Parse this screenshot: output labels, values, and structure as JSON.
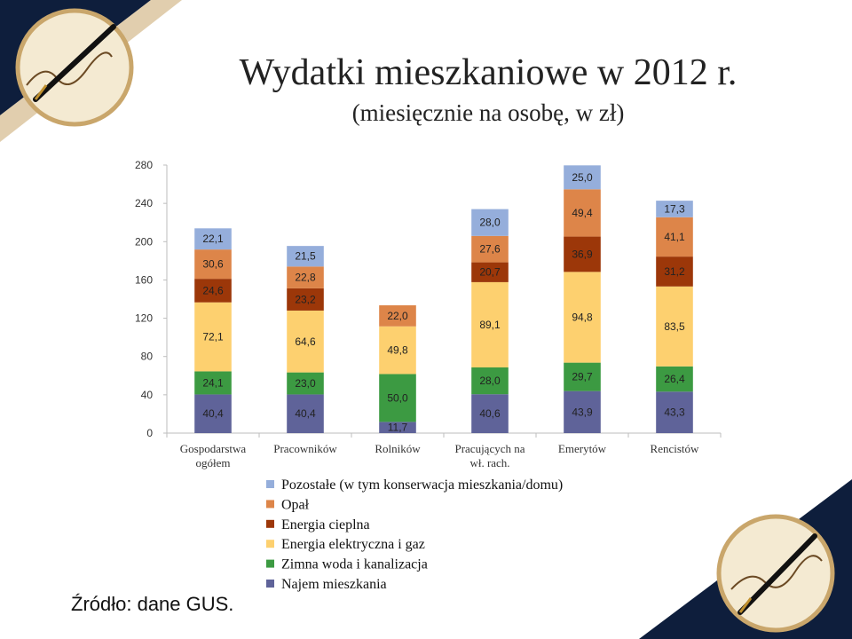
{
  "slide": {
    "title": "Wydatki mieszkaniowe w 2012 r.",
    "subtitle": "(miesięcznie na osobę, w zł)",
    "source": "Źródło: dane GUS."
  },
  "decorations": {
    "top_left_icon": "fountain-pen-medallion-icon",
    "bottom_right_icon": "fountain-pen-medallion-icon",
    "background_colors": [
      "#0e1e3c",
      "#c9a66b",
      "#f4ead2"
    ]
  },
  "chart_data": {
    "type": "bar",
    "stacked": true,
    "categories": [
      [
        "Gospodarstwa",
        "ogółem"
      ],
      [
        "Pracowników"
      ],
      [
        "Rolników"
      ],
      [
        "Pracujących na",
        "wł. rach."
      ],
      [
        "Emerytów"
      ],
      [
        "Rencistów"
      ]
    ],
    "ylim": [
      0,
      280
    ],
    "yticks": [
      0,
      40,
      80,
      120,
      160,
      200,
      240,
      280
    ],
    "grid": false,
    "legend_position": "bottom",
    "series": [
      {
        "name": "Najem mieszkania",
        "color": "#5f6399",
        "values": [
          40.4,
          40.4,
          11.7,
          40.6,
          43.9,
          43.3
        ],
        "labels": [
          "40,4",
          "40,4",
          "11,7",
          "40,6",
          "43,9",
          "43,3"
        ]
      },
      {
        "name": "Zimna woda i kanalizacja",
        "color": "#3c9a42",
        "values": [
          24.1,
          23.0,
          50.0,
          28.0,
          29.7,
          26.4
        ],
        "labels": [
          "24,1",
          "23,0",
          "50,0",
          "28,0",
          "29,7",
          "26,4"
        ]
      },
      {
        "name": "Energia elektryczna i gaz",
        "color": "#fdd06f",
        "values": [
          72.1,
          64.6,
          49.8,
          89.1,
          94.8,
          83.5
        ],
        "labels": [
          "72,1",
          "64,6",
          "49,8",
          "89,1",
          "94,8",
          "83,5"
        ]
      },
      {
        "name": "Energia cieplna",
        "color": "#9c3709",
        "values": [
          24.6,
          23.2,
          0,
          20.7,
          36.9,
          31.2
        ],
        "labels": [
          "24,6",
          "23,2",
          "",
          "20,7",
          "36,9",
          "31,2"
        ]
      },
      {
        "name": "Opał",
        "color": "#dd8549",
        "values": [
          30.6,
          22.8,
          22.0,
          27.6,
          49.4,
          41.1
        ],
        "labels": [
          "30,6",
          "22,8",
          "22,0",
          "27,6",
          "49,4",
          "41,1"
        ]
      },
      {
        "name": "Pozostałe (w tym konserwacja mieszkania/domu)",
        "color": "#95aedb",
        "values": [
          22.1,
          21.5,
          0,
          28.0,
          25.0,
          17.3
        ],
        "labels": [
          "22,1",
          "21,5",
          "",
          "28,0",
          "25,0",
          "17,3"
        ]
      }
    ]
  }
}
